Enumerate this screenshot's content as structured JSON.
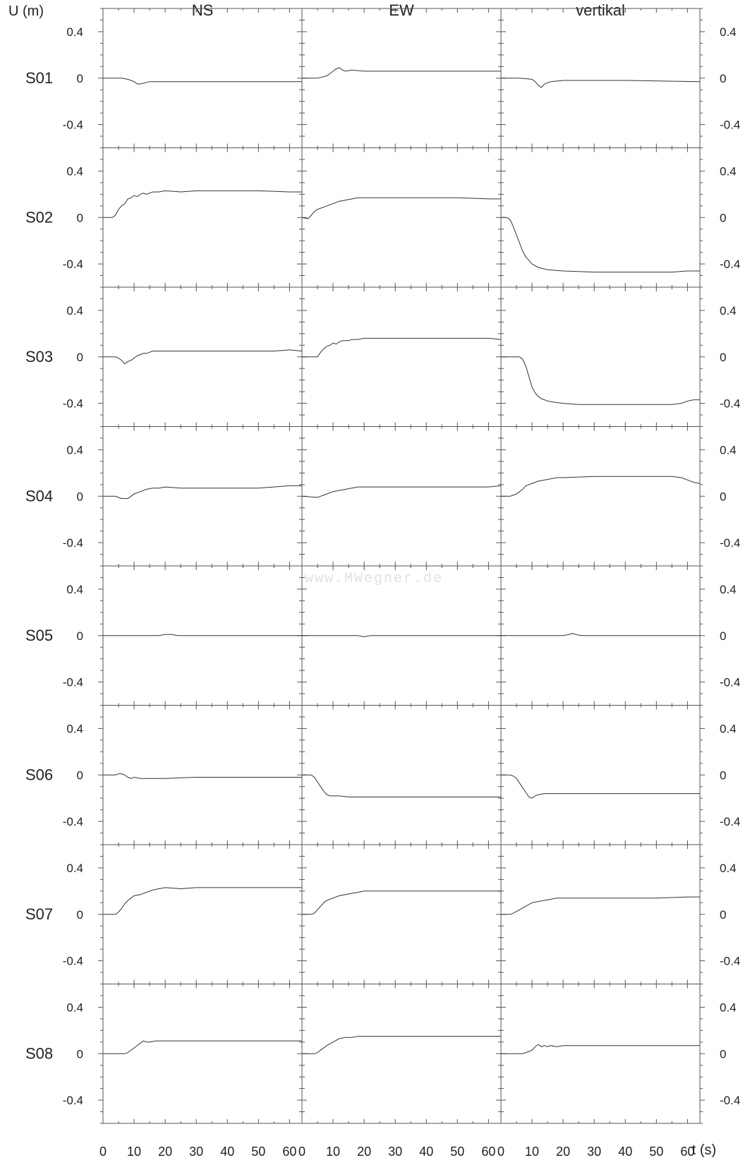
{
  "chart_data": {
    "type": "line",
    "ylabel": "U (m)",
    "xlabel": "t (s)",
    "columns": [
      "NS",
      "EW",
      "vertikal"
    ],
    "ylim": [
      -0.6,
      0.6
    ],
    "yticks": [
      "0.4",
      "0",
      "-0.4"
    ],
    "yticks_values": [
      0.4,
      0,
      -0.4
    ],
    "xlim": [
      0,
      64
    ],
    "xticks": [
      "0",
      "10",
      "20",
      "30",
      "40",
      "50",
      "60"
    ],
    "xticks_values": [
      0,
      10,
      20,
      30,
      40,
      50,
      60
    ],
    "grid": false,
    "watermark": "www.MWegner.de",
    "stations": [
      {
        "name": "S01",
        "series": [
          {
            "name": "NS",
            "x": [
              0,
              6,
              8,
              10,
              11,
              12,
              15,
              20,
              40,
              64
            ],
            "y": [
              0,
              0,
              -0.01,
              -0.03,
              -0.05,
              -0.05,
              -0.03,
              -0.03,
              -0.03,
              -0.03
            ]
          },
          {
            "name": "EW",
            "x": [
              0,
              5,
              8,
              10,
              11,
              12,
              13,
              14,
              16,
              20,
              40,
              64
            ],
            "y": [
              0,
              0,
              0.02,
              0.06,
              0.08,
              0.09,
              0.07,
              0.06,
              0.07,
              0.06,
              0.06,
              0.06
            ]
          },
          {
            "name": "vertikal",
            "x": [
              0,
              6,
              10,
              11,
              12,
              13,
              14,
              16,
              20,
              40,
              64
            ],
            "y": [
              0,
              0,
              -0.01,
              -0.03,
              -0.06,
              -0.08,
              -0.05,
              -0.03,
              -0.02,
              -0.02,
              -0.03
            ]
          }
        ]
      },
      {
        "name": "S02",
        "series": [
          {
            "name": "NS",
            "x": [
              0,
              3,
              4,
              5,
              6,
              7,
              8,
              9,
              10,
              11,
              12,
              13,
              14,
              15,
              16,
              18,
              20,
              25,
              30,
              40,
              50,
              60,
              64
            ],
            "y": [
              0,
              0,
              0.02,
              0.07,
              0.1,
              0.12,
              0.16,
              0.17,
              0.19,
              0.18,
              0.2,
              0.21,
              0.2,
              0.21,
              0.22,
              0.22,
              0.23,
              0.22,
              0.23,
              0.23,
              0.23,
              0.22,
              0.22
            ]
          },
          {
            "name": "EW",
            "x": [
              0,
              2,
              3,
              4,
              5,
              6,
              8,
              10,
              12,
              14,
              16,
              18,
              20,
              30,
              40,
              50,
              60,
              64
            ],
            "y": [
              0,
              -0.01,
              0.02,
              0.05,
              0.07,
              0.08,
              0.1,
              0.12,
              0.14,
              0.15,
              0.16,
              0.17,
              0.17,
              0.17,
              0.17,
              0.17,
              0.16,
              0.16
            ]
          },
          {
            "name": "vertikal",
            "x": [
              0,
              2,
              3,
              4,
              5,
              6,
              7,
              8,
              9,
              10,
              12,
              15,
              20,
              30,
              40,
              50,
              55,
              60,
              64
            ],
            "y": [
              0,
              0,
              -0.02,
              -0.08,
              -0.15,
              -0.22,
              -0.29,
              -0.34,
              -0.37,
              -0.4,
              -0.43,
              -0.45,
              -0.46,
              -0.47,
              -0.47,
              -0.47,
              -0.47,
              -0.46,
              -0.46
            ]
          }
        ]
      },
      {
        "name": "S03",
        "series": [
          {
            "name": "NS",
            "x": [
              0,
              4,
              5,
              6,
              7,
              8,
              9,
              10,
              11,
              12,
              13,
              14,
              15,
              16,
              18,
              20,
              25,
              30,
              40,
              50,
              55,
              60,
              64
            ],
            "y": [
              0,
              0,
              -0.01,
              -0.03,
              -0.06,
              -0.04,
              -0.03,
              -0.01,
              0.01,
              0.02,
              0.03,
              0.03,
              0.04,
              0.05,
              0.05,
              0.05,
              0.05,
              0.05,
              0.05,
              0.05,
              0.05,
              0.06,
              0.05
            ]
          },
          {
            "name": "EW",
            "x": [
              0,
              5,
              6,
              7,
              8,
              9,
              10,
              11,
              12,
              13,
              14,
              15,
              16,
              18,
              20,
              25,
              30,
              40,
              50,
              60,
              64
            ],
            "y": [
              0,
              0,
              0.04,
              0.07,
              0.09,
              0.1,
              0.12,
              0.11,
              0.13,
              0.14,
              0.14,
              0.14,
              0.15,
              0.15,
              0.16,
              0.16,
              0.16,
              0.16,
              0.16,
              0.16,
              0.15
            ]
          },
          {
            "name": "vertikal",
            "x": [
              0,
              6,
              7,
              8,
              9,
              10,
              11,
              12,
              13,
              15,
              17,
              20,
              25,
              30,
              40,
              50,
              55,
              58,
              60,
              62,
              64
            ],
            "y": [
              0,
              0,
              -0.02,
              -0.08,
              -0.17,
              -0.26,
              -0.31,
              -0.34,
              -0.36,
              -0.38,
              -0.39,
              -0.4,
              -0.41,
              -0.41,
              -0.41,
              -0.41,
              -0.41,
              -0.4,
              -0.38,
              -0.37,
              -0.37
            ]
          }
        ]
      },
      {
        "name": "S04",
        "series": [
          {
            "name": "NS",
            "x": [
              0,
              4,
              5,
              6,
              7,
              8,
              9,
              10,
              11,
              12,
              14,
              16,
              18,
              20,
              25,
              30,
              40,
              50,
              55,
              60,
              64
            ],
            "y": [
              0,
              0,
              -0.01,
              -0.02,
              -0.02,
              -0.02,
              0.0,
              0.02,
              0.03,
              0.04,
              0.06,
              0.07,
              0.07,
              0.08,
              0.07,
              0.07,
              0.07,
              0.07,
              0.08,
              0.09,
              0.09
            ]
          },
          {
            "name": "EW",
            "x": [
              0,
              5,
              6,
              7,
              8,
              9,
              10,
              12,
              14,
              16,
              18,
              20,
              25,
              30,
              40,
              50,
              60,
              64
            ],
            "y": [
              0,
              -0.01,
              0,
              0.01,
              0.02,
              0.03,
              0.04,
              0.05,
              0.06,
              0.07,
              0.08,
              0.08,
              0.08,
              0.08,
              0.08,
              0.08,
              0.08,
              0.09
            ]
          },
          {
            "name": "vertikal",
            "x": [
              0,
              3,
              4,
              5,
              6,
              7,
              8,
              10,
              12,
              14,
              16,
              18,
              20,
              30,
              40,
              50,
              55,
              58,
              60,
              62,
              64
            ],
            "y": [
              0,
              0,
              0.01,
              0.02,
              0.04,
              0.06,
              0.09,
              0.11,
              0.13,
              0.14,
              0.15,
              0.16,
              0.16,
              0.17,
              0.17,
              0.17,
              0.17,
              0.16,
              0.14,
              0.12,
              0.11
            ]
          }
        ]
      },
      {
        "name": "S05",
        "series": [
          {
            "name": "NS",
            "x": [
              0,
              18,
              20,
              22,
              24,
              40,
              64
            ],
            "y": [
              0,
              0,
              0.01,
              0.01,
              0,
              0,
              0
            ]
          },
          {
            "name": "EW",
            "x": [
              0,
              18,
              20,
              22,
              40,
              64
            ],
            "y": [
              0,
              0,
              -0.01,
              0,
              0,
              0
            ]
          },
          {
            "name": "vertikal",
            "x": [
              0,
              20,
              22,
              23,
              24,
              26,
              40,
              64
            ],
            "y": [
              0,
              0,
              0.01,
              0.02,
              0.01,
              0,
              0,
              0
            ]
          }
        ]
      },
      {
        "name": "S06",
        "series": [
          {
            "name": "NS",
            "x": [
              0,
              4,
              5,
              6,
              7,
              8,
              9,
              10,
              12,
              15,
              20,
              30,
              40,
              50,
              60,
              64
            ],
            "y": [
              0,
              0,
              0.01,
              0.01,
              0,
              -0.02,
              -0.03,
              -0.02,
              -0.03,
              -0.03,
              -0.03,
              -0.02,
              -0.02,
              -0.02,
              -0.02,
              -0.02
            ]
          },
          {
            "name": "EW",
            "x": [
              0,
              3,
              4,
              5,
              6,
              7,
              8,
              9,
              10,
              12,
              15,
              20,
              30,
              40,
              50,
              60,
              64
            ],
            "y": [
              0,
              0,
              -0.02,
              -0.06,
              -0.1,
              -0.14,
              -0.17,
              -0.18,
              -0.18,
              -0.18,
              -0.19,
              -0.19,
              -0.19,
              -0.19,
              -0.19,
              -0.19,
              -0.19
            ]
          },
          {
            "name": "vertikal",
            "x": [
              0,
              3,
              4,
              5,
              6,
              7,
              8,
              9,
              10,
              11,
              12,
              14,
              16,
              20,
              30,
              40,
              50,
              60,
              64
            ],
            "y": [
              0,
              0,
              -0.01,
              -0.03,
              -0.07,
              -0.11,
              -0.15,
              -0.19,
              -0.2,
              -0.18,
              -0.17,
              -0.16,
              -0.16,
              -0.16,
              -0.16,
              -0.16,
              -0.16,
              -0.16,
              -0.16
            ]
          }
        ]
      },
      {
        "name": "S07",
        "series": [
          {
            "name": "NS",
            "x": [
              0,
              4,
              5,
              6,
              7,
              8,
              9,
              10,
              12,
              14,
              16,
              18,
              20,
              25,
              30,
              40,
              50,
              60,
              64
            ],
            "y": [
              0,
              0,
              0.02,
              0.05,
              0.09,
              0.12,
              0.14,
              0.16,
              0.17,
              0.19,
              0.21,
              0.22,
              0.23,
              0.22,
              0.23,
              0.23,
              0.23,
              0.23,
              0.23
            ]
          },
          {
            "name": "EW",
            "x": [
              0,
              3,
              4,
              5,
              6,
              7,
              8,
              10,
              12,
              14,
              16,
              18,
              20,
              25,
              30,
              40,
              50,
              60,
              64
            ],
            "y": [
              0,
              0,
              0.01,
              0.04,
              0.07,
              0.1,
              0.12,
              0.14,
              0.16,
              0.17,
              0.18,
              0.19,
              0.2,
              0.2,
              0.2,
              0.2,
              0.2,
              0.2,
              0.2
            ]
          },
          {
            "name": "vertikal",
            "x": [
              0,
              3,
              4,
              6,
              8,
              10,
              12,
              14,
              16,
              18,
              20,
              25,
              30,
              40,
              50,
              60,
              64
            ],
            "y": [
              0,
              0,
              0.01,
              0.04,
              0.07,
              0.1,
              0.11,
              0.12,
              0.13,
              0.14,
              0.14,
              0.14,
              0.14,
              0.14,
              0.14,
              0.15,
              0.15
            ]
          }
        ]
      },
      {
        "name": "S08",
        "series": [
          {
            "name": "NS",
            "x": [
              0,
              7,
              8,
              10,
              12,
              13,
              14,
              15,
              17,
              20,
              30,
              40,
              50,
              60,
              64
            ],
            "y": [
              0,
              0,
              0.01,
              0.05,
              0.09,
              0.11,
              0.1,
              0.1,
              0.11,
              0.11,
              0.11,
              0.11,
              0.11,
              0.11,
              0.11
            ]
          },
          {
            "name": "EW",
            "x": [
              0,
              4,
              5,
              6,
              8,
              10,
              12,
              14,
              16,
              18,
              20,
              25,
              30,
              40,
              50,
              60,
              64
            ],
            "y": [
              0,
              0,
              0.01,
              0.03,
              0.07,
              0.1,
              0.13,
              0.14,
              0.14,
              0.15,
              0.15,
              0.15,
              0.15,
              0.15,
              0.15,
              0.15,
              0.15
            ]
          },
          {
            "name": "vertikal",
            "x": [
              0,
              7,
              8,
              10,
              11,
              12,
              13,
              14,
              15,
              16,
              18,
              20,
              30,
              40,
              50,
              60,
              64
            ],
            "y": [
              0,
              0,
              0.01,
              0.03,
              0.06,
              0.08,
              0.06,
              0.07,
              0.06,
              0.07,
              0.06,
              0.07,
              0.07,
              0.07,
              0.07,
              0.07,
              0.07
            ]
          }
        ]
      }
    ]
  }
}
